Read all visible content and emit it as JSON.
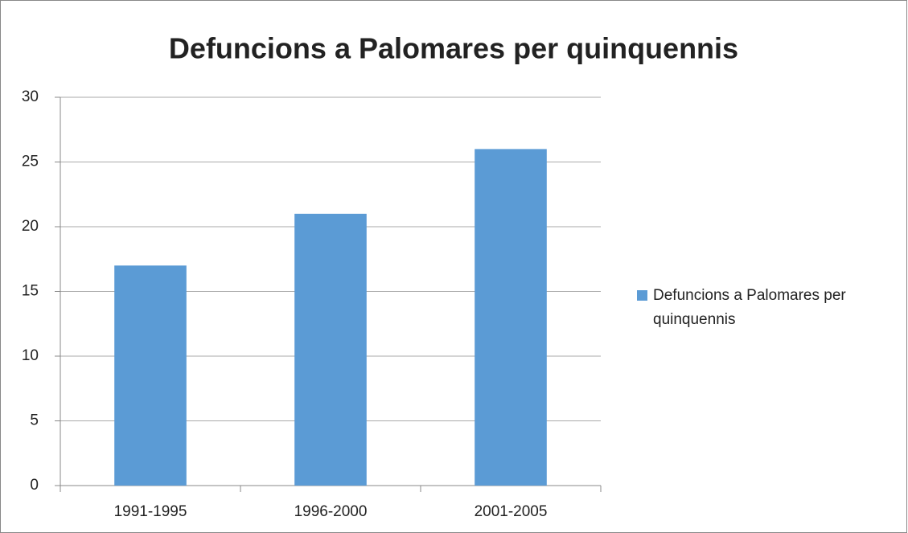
{
  "chart_data": {
    "type": "bar",
    "title": "Defuncions a Palomares per quinquennis",
    "categories": [
      "1991-1995",
      "1996-2000",
      "2001-2005"
    ],
    "series": [
      {
        "name": "Defuncions a Palomares per quinquennis",
        "color": "#5b9bd5",
        "values": [
          17,
          21,
          26
        ]
      }
    ],
    "ylim": [
      0,
      30
    ],
    "yticks": [
      0,
      5,
      10,
      15,
      20,
      25,
      30
    ],
    "grid": true,
    "legend": "right"
  }
}
